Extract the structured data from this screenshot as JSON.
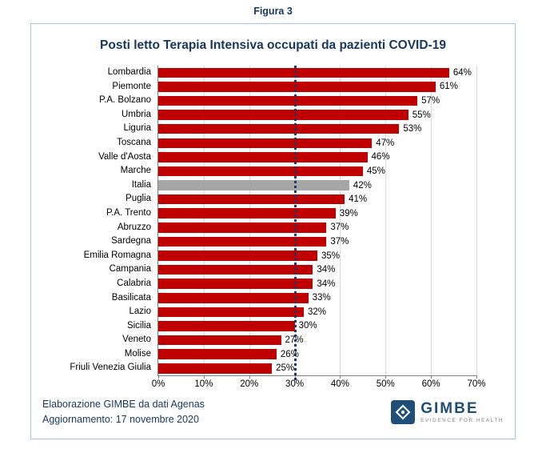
{
  "figure_label": "Figura 3",
  "chart_data": {
    "type": "bar",
    "orientation": "horizontal",
    "title": "Posti letto Terapia Intensiva occupati da pazienti COVID-19",
    "categories": [
      "Lombardia",
      "Piemonte",
      "P.A. Bolzano",
      "Umbria",
      "Liguria",
      "Toscana",
      "Valle d'Aosta",
      "Marche",
      "Italia",
      "Puglia",
      "P.A. Trento",
      "Abruzzo",
      "Sardegna",
      "Emilia Romagna",
      "Campania",
      "Calabria",
      "Basilicata",
      "Lazio",
      "Sicilia",
      "Veneto",
      "Molise",
      "Friuli Venezia Giulia"
    ],
    "values": [
      64,
      61,
      57,
      55,
      53,
      47,
      46,
      45,
      42,
      41,
      39,
      37,
      37,
      35,
      34,
      34,
      33,
      32,
      30,
      27,
      26,
      25
    ],
    "value_suffix": "%",
    "xlim": [
      0,
      70
    ],
    "x_ticks": [
      "0%",
      "10%",
      "20%",
      "30%",
      "40%",
      "50%",
      "60%",
      "70%"
    ],
    "grid": true,
    "legend": "none",
    "bar_color": "#C00000",
    "highlight_category": "Italia",
    "highlight_color": "#A6A6A6",
    "reference_line": {
      "value": 30,
      "color": "#1F3864",
      "style": "dotted"
    }
  },
  "footer": {
    "line1": "Elaborazione GIMBE da dati Agenas",
    "line2": "Aggiornamento: 17 novembre 2020"
  },
  "logo": {
    "name": "GIMBE",
    "tagline": "EVIDENCE FOR HEALTH"
  },
  "colors": {
    "accent": "#17375E",
    "box_border": "#A9C4DE",
    "gridline": "#D9D9D9"
  }
}
